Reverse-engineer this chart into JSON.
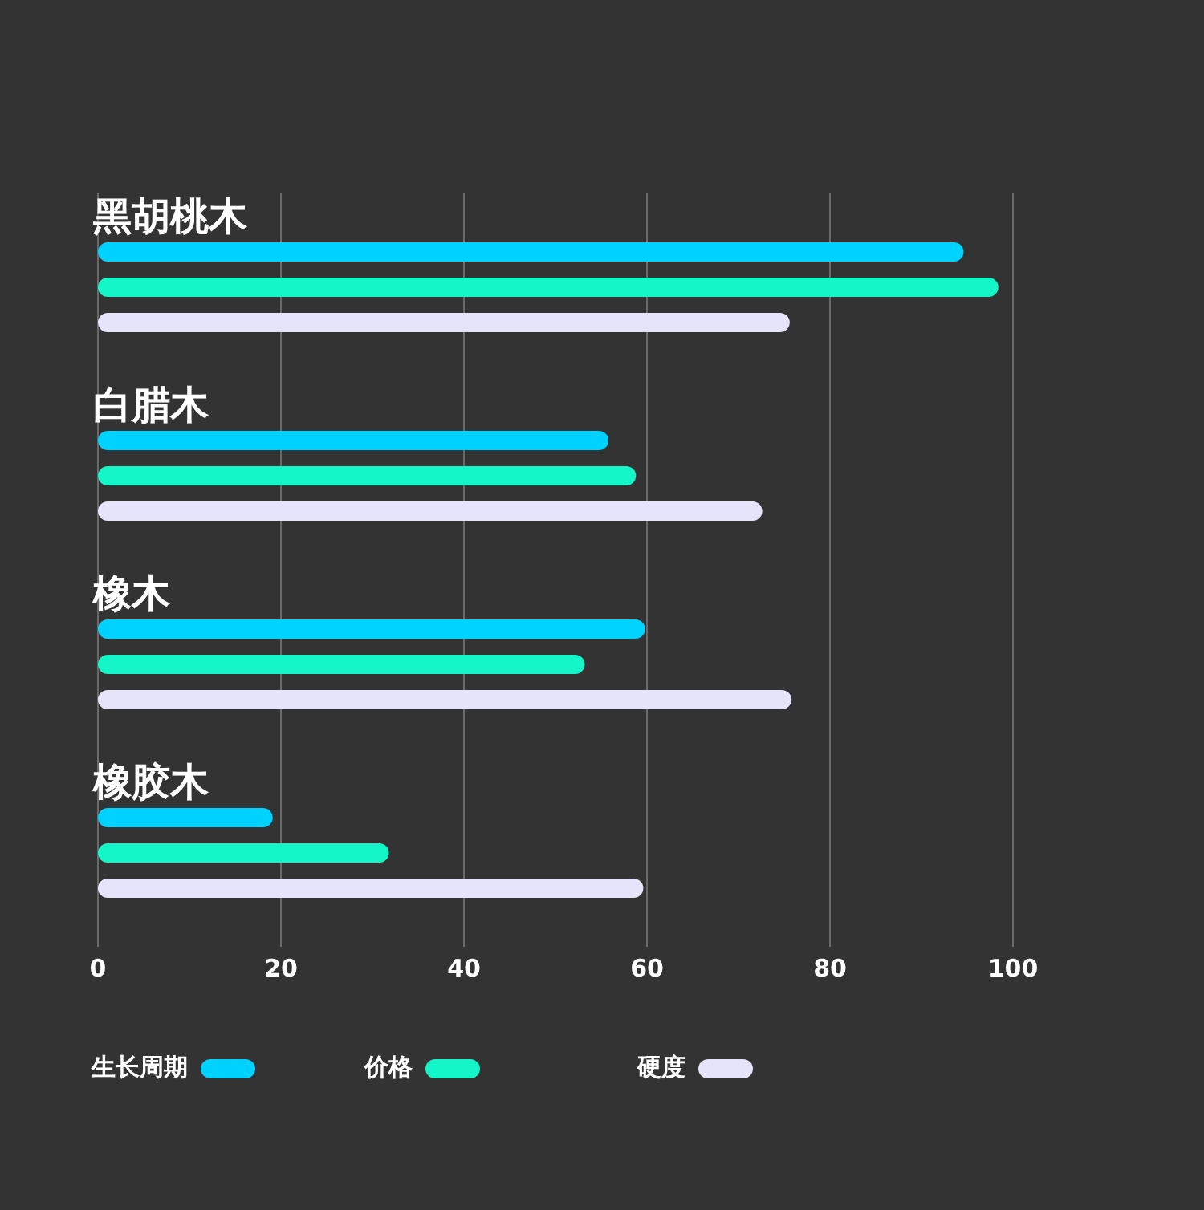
{
  "chart_data": {
    "type": "bar",
    "orientation": "horizontal",
    "categories": [
      "黑胡桃木",
      "白腊木",
      "橡木",
      "橡胶木"
    ],
    "series": [
      {
        "name": "生长周期",
        "color": "#00d2ff",
        "values": [
          94.6,
          55.8,
          59.8,
          19.1
        ]
      },
      {
        "name": "价格",
        "color": "#14f5c8",
        "values": [
          98.4,
          58.8,
          53.2,
          31.8
        ]
      },
      {
        "name": "硬度",
        "color": "#e6e4fa",
        "values": [
          75.6,
          72.6,
          75.8,
          59.6
        ]
      }
    ],
    "xlim": [
      0,
      100
    ],
    "xticks": [
      0,
      20,
      40,
      60,
      80,
      100
    ],
    "grid": "x",
    "legend": "bottom left"
  }
}
